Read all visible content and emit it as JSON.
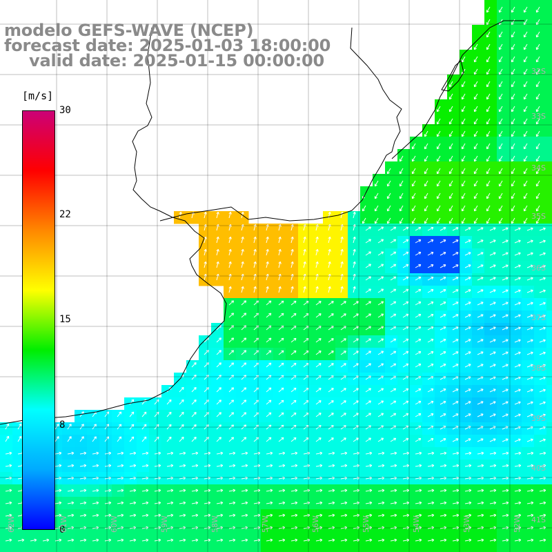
{
  "header": {
    "line1": "modelo GEFS-WAVE (NCEP)",
    "line2": "forecast date: 2025-01-03 18:00:00",
    "line3": "valid date: 2025-01-15 00:00:00"
  },
  "colorbar": {
    "units": "[m/s]",
    "ticks": [
      "30",
      "22",
      "15",
      "8",
      "0"
    ],
    "tick_values": [
      30,
      22,
      15,
      8,
      0
    ],
    "colors": [
      "#0000ff",
      "#00aaff",
      "#00ffff",
      "#00ee00",
      "#ffff00",
      "#ff8800",
      "#ff0000",
      "#cc0077"
    ]
  },
  "map": {
    "lat_labels": [
      "32S",
      "33S",
      "34S",
      "35S",
      "36S",
      "37S",
      "38S",
      "39S",
      "40S",
      "41S"
    ],
    "lon_labels": [
      "62W",
      "61W",
      "60W",
      "59W",
      "58W",
      "57W",
      "56W",
      "55W",
      "54W",
      "53W",
      "52W"
    ],
    "land_color": "#ffffff",
    "grid_color": "#000000",
    "arrow_color": "#ffffff"
  }
}
